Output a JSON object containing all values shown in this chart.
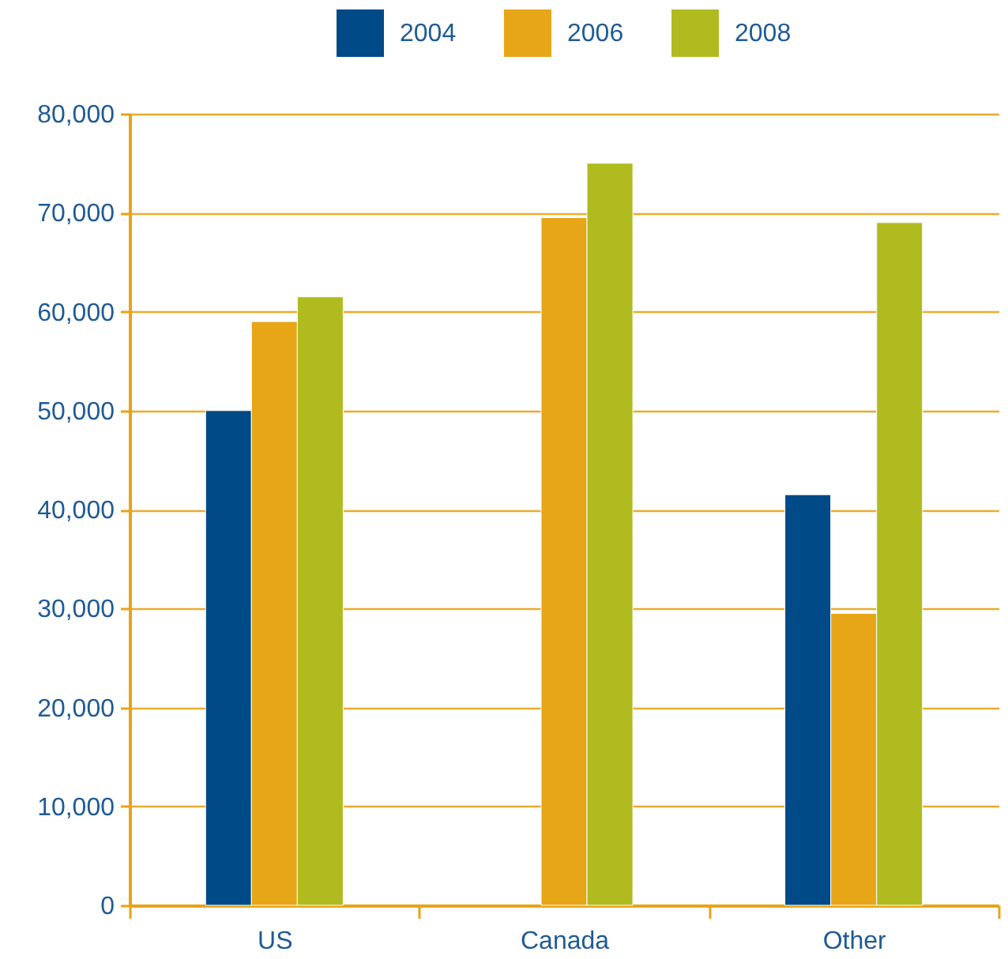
{
  "chart_data": {
    "type": "bar",
    "categories": [
      "US",
      "Canada",
      "Other"
    ],
    "series": [
      {
        "name": "2004",
        "color": "#004a87",
        "values": [
          50000,
          null,
          41500
        ]
      },
      {
        "name": "2006",
        "color": "#e6a618",
        "values": [
          59000,
          69500,
          29500
        ]
      },
      {
        "name": "2008",
        "color": "#b0bb20",
        "values": [
          61500,
          75000,
          69000
        ]
      }
    ],
    "ylim": [
      0,
      80000
    ],
    "yticks": [
      0,
      {
        "value": 10000,
        "label": "10,000"
      },
      {
        "value": 20000,
        "label": "20,000"
      },
      {
        "value": 30000,
        "label": "30,000"
      },
      {
        "value": 40000,
        "label": "40,000"
      },
      {
        "value": 50000,
        "label": "50,000"
      },
      {
        "value": 60000,
        "label": "60,000"
      },
      {
        "value": 70000,
        "label": "70,000"
      },
      {
        "value": 80000,
        "label": "80,000"
      }
    ],
    "grid": "y",
    "legend": "top"
  }
}
